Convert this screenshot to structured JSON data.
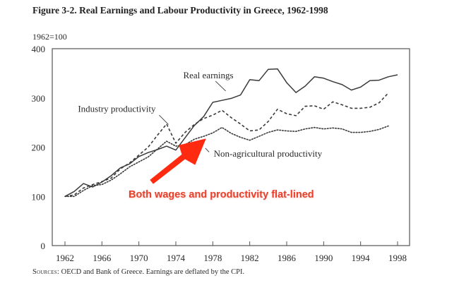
{
  "figure": {
    "title": "Figure 3-2. Real Earnings and Labour Productivity in Greece, 1962-1998",
    "unit_label": "1962=100",
    "source_prefix": "Sources:",
    "source_text": " OECD and Bank of Greece. Earnings are deflated by the CPI."
  },
  "annotation": {
    "text": "Both wages and productivity flat-lined",
    "color": "#e8402a",
    "arrow_color": "#ff2a10"
  },
  "chart_data": {
    "type": "line",
    "title": "Figure 3-2. Real Earnings and Labour Productivity in Greece, 1962-1998",
    "xlabel": "",
    "ylabel": "1962=100",
    "xlim": [
      1959.5,
      1999.3
    ],
    "ylim": [
      0,
      400
    ],
    "x_ticks": [
      1962,
      1966,
      1970,
      1974,
      1978,
      1982,
      1986,
      1990,
      1994,
      1998
    ],
    "y_ticks": [
      0,
      100,
      200,
      300,
      400
    ],
    "grid": false,
    "legend": "inline labels",
    "series": [
      {
        "name": "Real earnings",
        "style": "solid",
        "label": {
          "text": "Real earnings",
          "x": 1974.8,
          "y": 340,
          "leader": [
            [
              1978.3,
              334
            ],
            [
              1979.4,
              314
            ]
          ]
        },
        "points": [
          [
            1962,
            100
          ],
          [
            1963,
            110
          ],
          [
            1964,
            126
          ],
          [
            1965,
            119
          ],
          [
            1966,
            129
          ],
          [
            1967,
            142
          ],
          [
            1968,
            158
          ],
          [
            1969,
            166
          ],
          [
            1970,
            181
          ],
          [
            1971,
            189
          ],
          [
            1972,
            195
          ],
          [
            1973,
            202
          ],
          [
            1974,
            194
          ],
          [
            1975,
            219
          ],
          [
            1976,
            244
          ],
          [
            1977,
            262
          ],
          [
            1978,
            291
          ],
          [
            1979,
            295
          ],
          [
            1980,
            299
          ],
          [
            1981,
            306
          ],
          [
            1982,
            337
          ],
          [
            1983,
            335
          ],
          [
            1984,
            358
          ],
          [
            1985,
            359
          ],
          [
            1986,
            331
          ],
          [
            1987,
            311
          ],
          [
            1988,
            324
          ],
          [
            1989,
            343
          ],
          [
            1990,
            340
          ],
          [
            1991,
            333
          ],
          [
            1992,
            327
          ],
          [
            1993,
            316
          ],
          [
            1994,
            322
          ],
          [
            1995,
            335
          ],
          [
            1996,
            336
          ],
          [
            1997,
            343
          ],
          [
            1998,
            347
          ]
        ]
      },
      {
        "name": "Industry productivity",
        "style": "dashed",
        "label": {
          "text": "Industry productivity",
          "x": 1963.4,
          "y": 272,
          "leader": [
            [
              1972.2,
              265
            ],
            [
              1973.2,
              246
            ]
          ]
        },
        "points": [
          [
            1962,
            100
          ],
          [
            1963,
            103
          ],
          [
            1964,
            117
          ],
          [
            1965,
            124
          ],
          [
            1966,
            130
          ],
          [
            1967,
            137
          ],
          [
            1968,
            156
          ],
          [
            1969,
            168
          ],
          [
            1970,
            184
          ],
          [
            1971,
            200
          ],
          [
            1972,
            224
          ],
          [
            1973,
            247
          ],
          [
            1974,
            208
          ],
          [
            1975,
            230
          ],
          [
            1976,
            246
          ],
          [
            1977,
            258
          ],
          [
            1978,
            265
          ],
          [
            1979,
            275
          ],
          [
            1980,
            260
          ],
          [
            1981,
            247
          ],
          [
            1982,
            233
          ],
          [
            1983,
            235
          ],
          [
            1984,
            252
          ],
          [
            1985,
            277
          ],
          [
            1986,
            268
          ],
          [
            1987,
            264
          ],
          [
            1988,
            283
          ],
          [
            1989,
            284
          ],
          [
            1990,
            277
          ],
          [
            1991,
            292
          ],
          [
            1992,
            286
          ],
          [
            1993,
            279
          ],
          [
            1994,
            279
          ],
          [
            1995,
            281
          ],
          [
            1996,
            290
          ],
          [
            1997,
            310
          ]
        ]
      },
      {
        "name": "Non-agricultural productivity",
        "style": "dotted",
        "label": {
          "text": "Non-agricultural productivity",
          "x": 1978.1,
          "y": 181,
          "leader": [
            [
              1977.6,
              190
            ],
            [
              1977.2,
              198
            ]
          ]
        },
        "points": [
          [
            1962,
            100
          ],
          [
            1963,
            100
          ],
          [
            1964,
            112
          ],
          [
            1965,
            122
          ],
          [
            1966,
            124
          ],
          [
            1967,
            133
          ],
          [
            1968,
            146
          ],
          [
            1969,
            160
          ],
          [
            1970,
            170
          ],
          [
            1971,
            180
          ],
          [
            1972,
            196
          ],
          [
            1973,
            212
          ],
          [
            1974,
            202
          ],
          [
            1975,
            205
          ],
          [
            1976,
            216
          ],
          [
            1977,
            222
          ],
          [
            1978,
            229
          ],
          [
            1979,
            240
          ],
          [
            1980,
            228
          ],
          [
            1981,
            220
          ],
          [
            1982,
            214
          ],
          [
            1983,
            222
          ],
          [
            1984,
            230
          ],
          [
            1985,
            235
          ],
          [
            1986,
            233
          ],
          [
            1987,
            232
          ],
          [
            1988,
            237
          ],
          [
            1989,
            240
          ],
          [
            1990,
            237
          ],
          [
            1991,
            239
          ],
          [
            1992,
            237
          ],
          [
            1993,
            230
          ],
          [
            1994,
            230
          ],
          [
            1995,
            232
          ],
          [
            1996,
            236
          ],
          [
            1997,
            243
          ]
        ]
      }
    ]
  }
}
